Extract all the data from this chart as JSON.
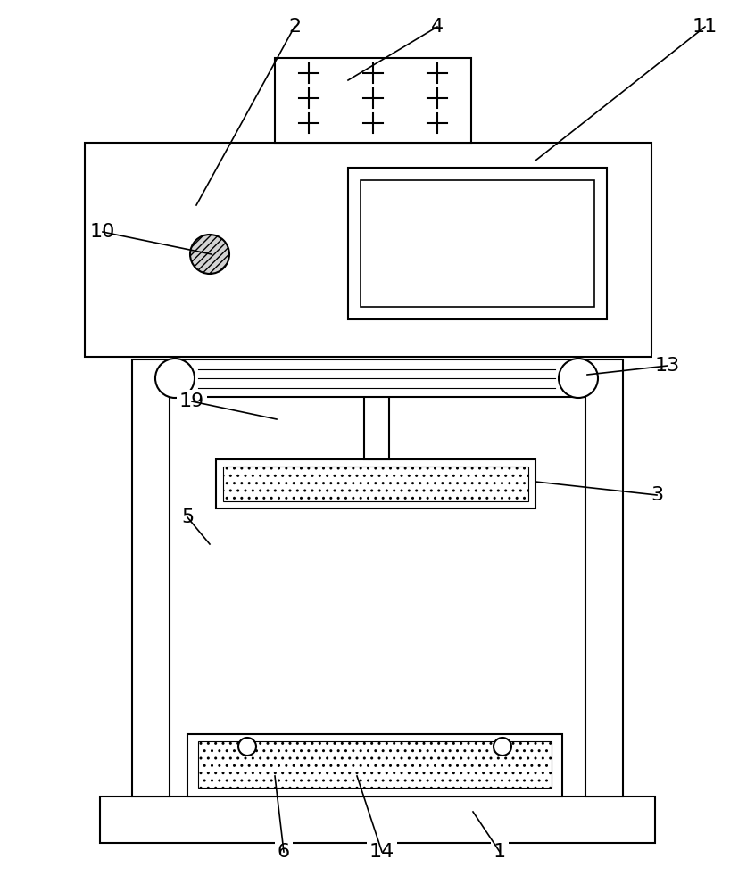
{
  "bg_color": "#ffffff",
  "line_color": "#000000",
  "line_width": 1.5,
  "fig_width": 8.46,
  "fig_height": 10.0,
  "label_fontsize": 16
}
